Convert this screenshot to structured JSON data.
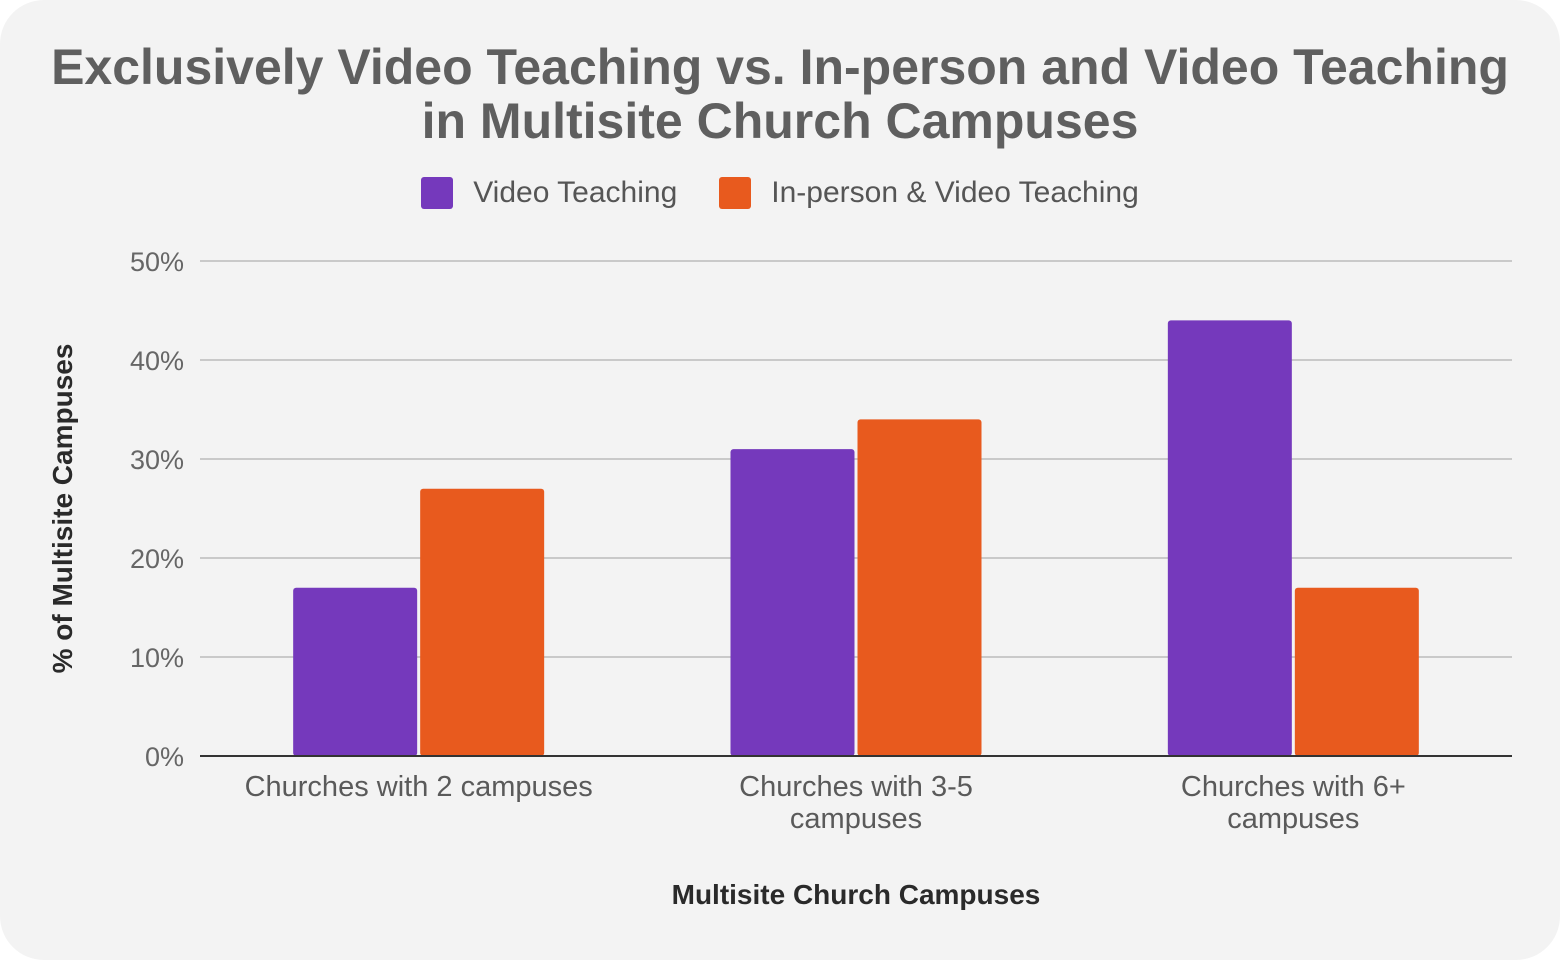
{
  "chart_data": {
    "type": "bar",
    "title_lines": [
      "Exclusively Video Teaching vs. In-person and Video Teaching",
      "in Multisite Church Campuses"
    ],
    "categories": [
      [
        "Churches with 2 campuses"
      ],
      [
        "Churches with 3-5",
        "campuses"
      ],
      [
        "Churches with 6+",
        "campuses"
      ]
    ],
    "series": [
      {
        "name": "Video Teaching",
        "color": "#7539bc",
        "values": [
          17,
          31,
          44
        ]
      },
      {
        "name": "In-person & Video Teaching",
        "color": "#e85a1e",
        "values": [
          27,
          34,
          17
        ]
      }
    ],
    "xlabel": "Multisite Church Campuses",
    "ylabel": "% of Multisite Campuses",
    "ylim": [
      0,
      50
    ],
    "yticks": [
      "0%",
      "10%",
      "20%",
      "30%",
      "40%",
      "50%"
    ],
    "grid": true,
    "legend_position": "top-center"
  }
}
